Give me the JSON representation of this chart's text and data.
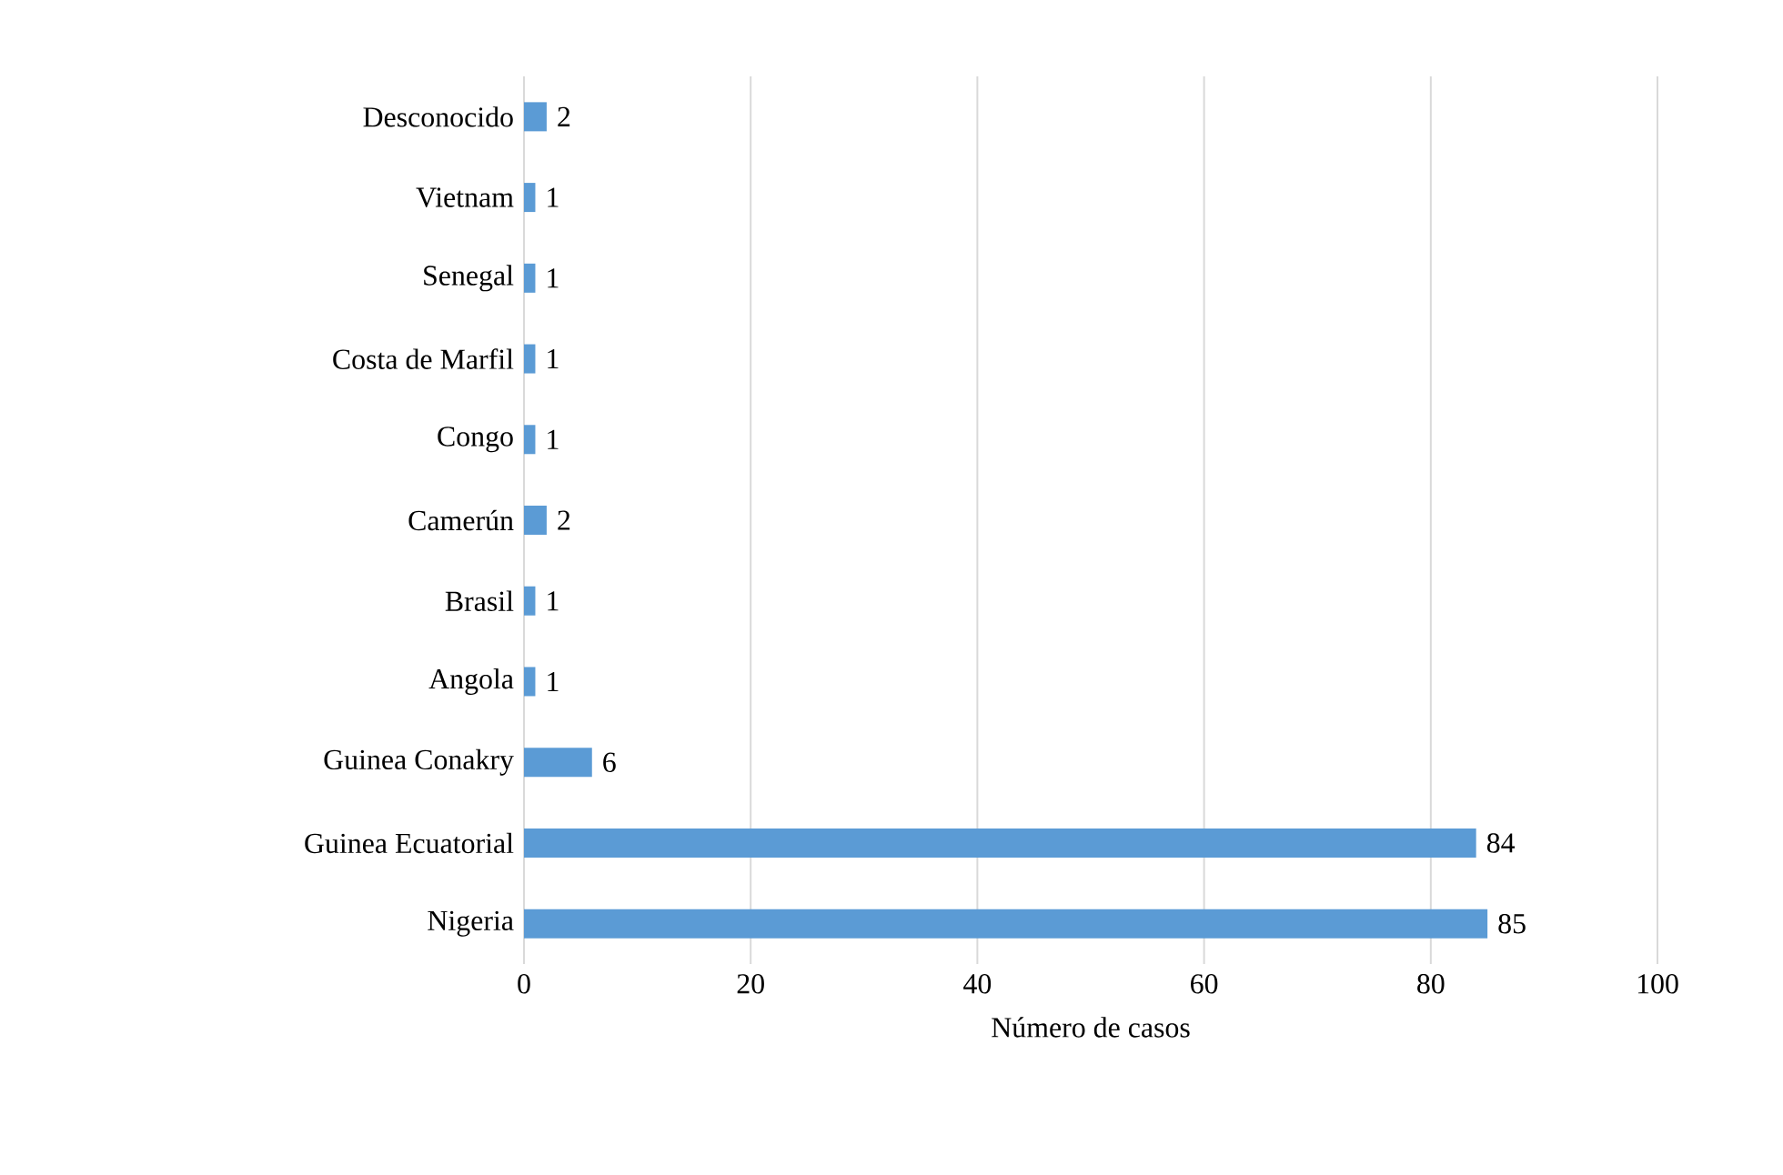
{
  "chart_data": {
    "type": "bar",
    "orientation": "horizontal",
    "xlabel": "Número de casos",
    "categories": [
      "Desconocido",
      "Vietnam",
      "Senegal",
      "Costa de Marfil",
      "Congo",
      "Camerún",
      "Brasil",
      "Angola",
      "Guinea Conakry",
      "Guinea Ecuatorial",
      "Nigeria"
    ],
    "values": [
      2,
      1,
      1,
      1,
      1,
      2,
      1,
      1,
      6,
      84,
      85
    ],
    "color": "#5b9bd5",
    "xlim": [
      0,
      100
    ],
    "xticks": [
      0,
      20,
      40,
      60,
      80,
      100
    ],
    "grid": "x",
    "data_labels": true
  }
}
